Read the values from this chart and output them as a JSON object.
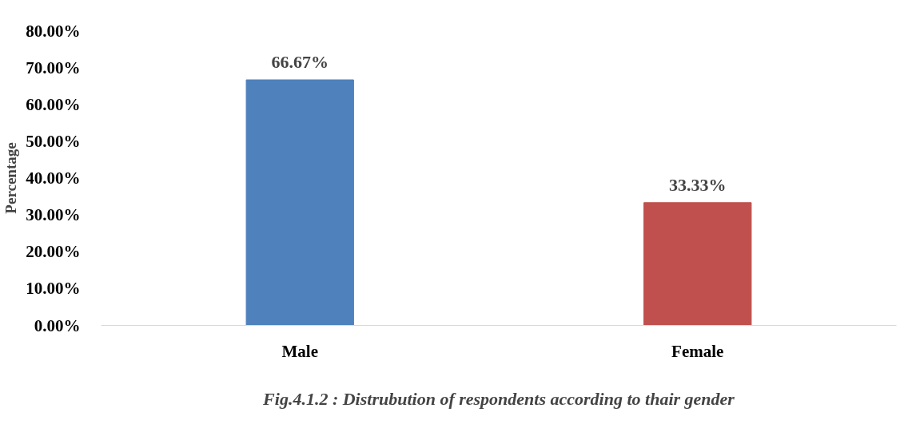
{
  "chart_data": {
    "type": "bar",
    "categories": [
      "Male",
      "Female"
    ],
    "values": [
      66.67,
      33.33
    ],
    "colors": [
      "#4f81bd",
      "#c0504d"
    ],
    "value_labels": [
      "66.67%",
      "33.33%"
    ],
    "ylabel": "Percentage",
    "ylim": [
      0,
      80
    ],
    "yticks": [
      {
        "value": 0,
        "label": "0.00%"
      },
      {
        "value": 10,
        "label": "10.00%"
      },
      {
        "value": 20,
        "label": "20.00%"
      },
      {
        "value": 30,
        "label": "30.00%"
      },
      {
        "value": 40,
        "label": "40.00%"
      },
      {
        "value": 50,
        "label": "50.00%"
      },
      {
        "value": 60,
        "label": "60.00%"
      },
      {
        "value": 70,
        "label": "70.00%"
      },
      {
        "value": 80,
        "label": "80.00%"
      }
    ],
    "grid": false,
    "annotations": [
      "Fig.4.1.2 : Distrubution of respondents according to thair gender"
    ]
  }
}
